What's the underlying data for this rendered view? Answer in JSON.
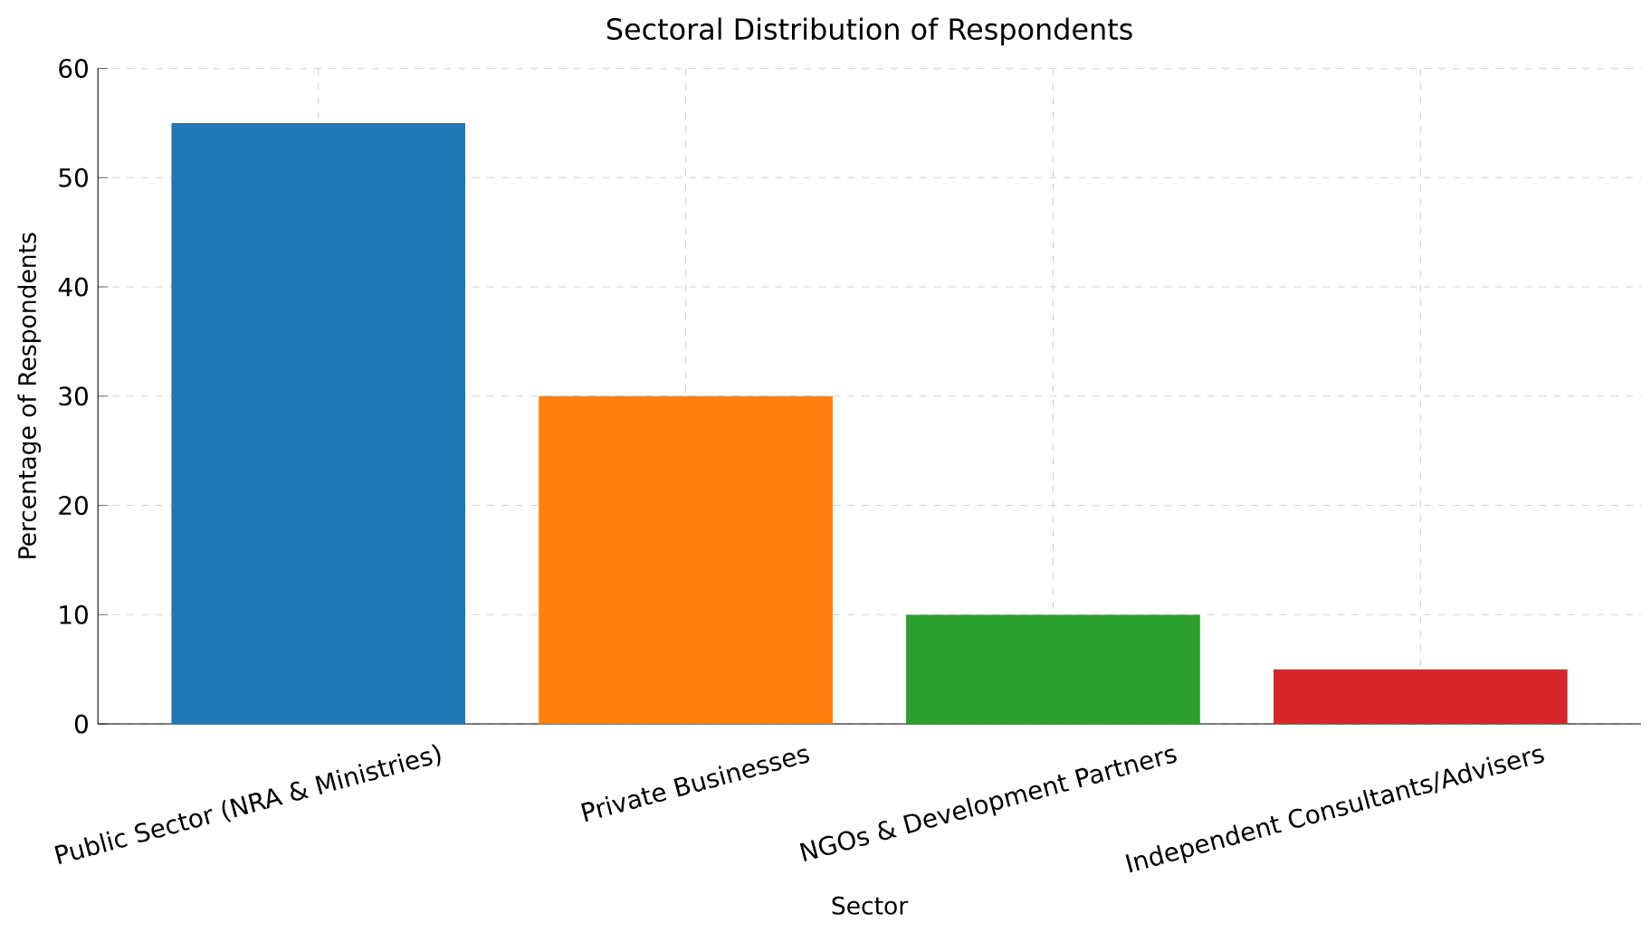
{
  "chart_data": {
    "type": "bar",
    "title": "Sectoral Distribution of Respondents",
    "xlabel": "Sector",
    "ylabel": "Percentage of Respondents",
    "categories": [
      "Public Sector (NRA & Ministries)",
      "Private Businesses",
      "NGOs & Development Partners",
      "Independent Consultants/Advisers"
    ],
    "values": [
      55,
      30,
      10,
      5
    ],
    "colors": [
      "#1f77b4",
      "#ff7f0e",
      "#2ca02c",
      "#d62728"
    ],
    "ylim": [
      0,
      60
    ],
    "yticks": [
      0,
      10,
      20,
      30,
      40,
      50,
      60
    ],
    "grid": true
  }
}
